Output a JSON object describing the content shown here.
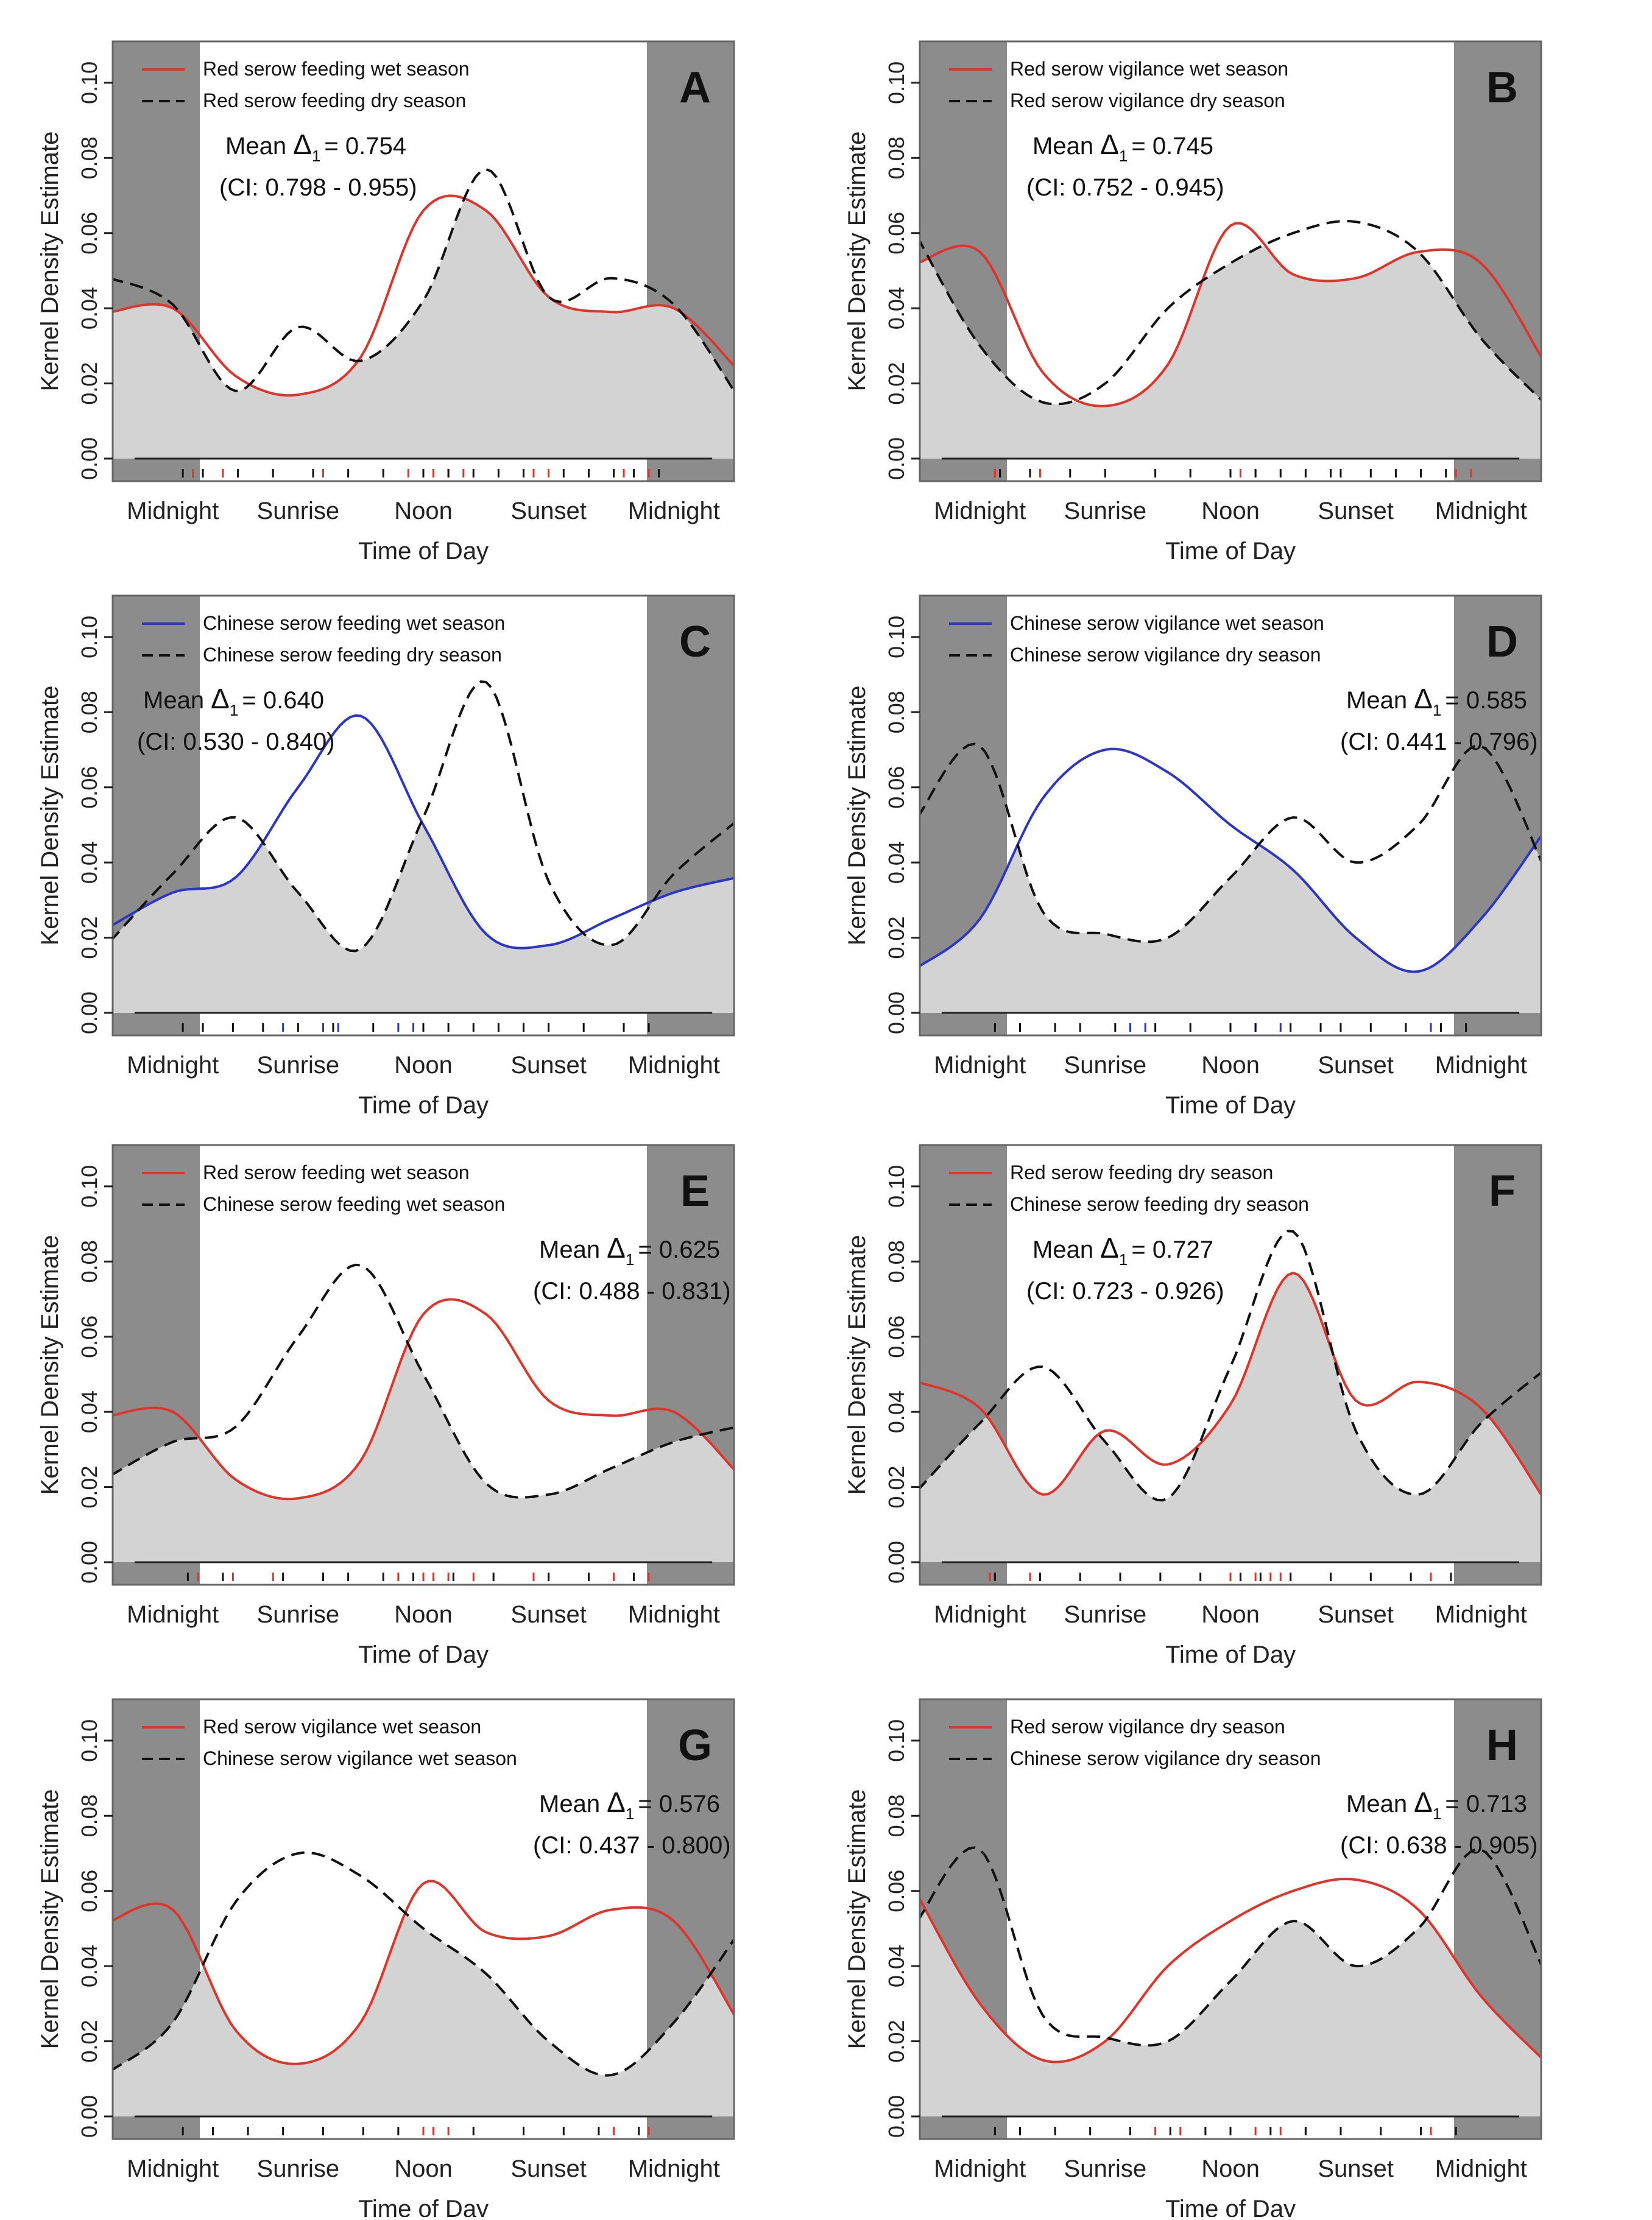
{
  "figure": {
    "ylabel": "Kernel Density Estimate",
    "xlabel": "Time of Day",
    "xticks": [
      "Midnight",
      "Sunrise",
      "Noon",
      "Sunset",
      "Midnight"
    ],
    "yticks": [
      "0.00",
      "0.02",
      "0.04",
      "0.06",
      "0.08",
      "0.10"
    ],
    "colors": {
      "night_band": "#8c8c8c",
      "overlap_fill": "#d3d3d3",
      "red_series": "#e0332a",
      "blue_series": "#2b35c8",
      "black_series": "#111111",
      "frame": "#666666"
    }
  },
  "chart_data": [
    {
      "id": "A",
      "type": "line",
      "title": "A",
      "xlabel": "Time of Day",
      "ylabel": "Kernel Density Estimate",
      "xlim": [
        -0.12,
        1.12
      ],
      "ylim": [
        -0.006,
        0.111
      ],
      "annotation": {
        "mean_prefix": "Mean ",
        "delta": "Δ",
        "subscript": "1",
        "mean_value": "= 0.754",
        "ci": "(CI: 0.798 - 0.955)"
      },
      "series": [
        {
          "name": "Red serow feeding wet season",
          "color": "red",
          "dash": false,
          "x": [
            -0.125,
            0,
            0.125,
            0.25,
            0.375,
            0.5,
            0.625,
            0.75,
            0.875,
            1,
            1.125
          ],
          "y": [
            0.039,
            0.04,
            0.022,
            0.017,
            0.027,
            0.066,
            0.066,
            0.043,
            0.039,
            0.04,
            0.024
          ]
        },
        {
          "name": "Red serow feeding dry season",
          "color": "black",
          "dash": true,
          "x": [
            -0.125,
            0,
            0.125,
            0.25,
            0.375,
            0.5,
            0.625,
            0.75,
            0.875,
            1,
            1.125
          ],
          "y": [
            0.048,
            0.041,
            0.018,
            0.035,
            0.026,
            0.042,
            0.077,
            0.043,
            0.048,
            0.041,
            0.017
          ]
        }
      ],
      "rug": {
        "red": [
          0.04,
          0.1,
          0.3,
          0.47,
          0.5,
          0.52,
          0.55,
          0.58,
          0.72,
          0.75,
          0.9,
          0.95
        ],
        "black": [
          0.02,
          0.06,
          0.13,
          0.2,
          0.28,
          0.35,
          0.42,
          0.5,
          0.55,
          0.6,
          0.65,
          0.7,
          0.78,
          0.83,
          0.88,
          0.92,
          0.97
        ]
      }
    },
    {
      "id": "B",
      "type": "line",
      "title": "B",
      "xlabel": "Time of Day",
      "ylabel": "Kernel Density Estimate",
      "xlim": [
        -0.12,
        1.12
      ],
      "ylim": [
        -0.006,
        0.111
      ],
      "annotation": {
        "mean_prefix": "Mean ",
        "delta": "Δ",
        "subscript": "1",
        "mean_value": "= 0.745",
        "ci": "(CI: 0.752 - 0.945)"
      },
      "series": [
        {
          "name": "Red serow vigilance wet season",
          "color": "red",
          "dash": false,
          "x": [
            -0.125,
            0,
            0.125,
            0.25,
            0.375,
            0.5,
            0.625,
            0.75,
            0.875,
            1,
            1.125
          ],
          "y": [
            0.052,
            0.055,
            0.023,
            0.014,
            0.025,
            0.062,
            0.049,
            0.048,
            0.055,
            0.052,
            0.026
          ]
        },
        {
          "name": "Red serow vigilance dry season",
          "color": "black",
          "dash": true,
          "x": [
            -0.125,
            0,
            0.125,
            0.25,
            0.375,
            0.5,
            0.625,
            0.75,
            0.875,
            1,
            1.125
          ],
          "y": [
            0.059,
            0.03,
            0.015,
            0.02,
            0.04,
            0.052,
            0.06,
            0.063,
            0.055,
            0.032,
            0.015
          ]
        }
      ],
      "rug": {
        "red": [
          0.03,
          0.12,
          0.5,
          0.52,
          0.55,
          0.95,
          0.98
        ],
        "black": [
          0.04,
          0.1,
          0.18,
          0.25,
          0.35,
          0.42,
          0.5,
          0.55,
          0.6,
          0.65,
          0.7,
          0.72,
          0.78,
          0.83,
          0.88,
          0.93
        ]
      }
    },
    {
      "id": "C",
      "type": "line",
      "title": "C",
      "xlabel": "Time of Day",
      "ylabel": "Kernel Density Estimate",
      "xlim": [
        -0.12,
        1.12
      ],
      "ylim": [
        -0.006,
        0.111
      ],
      "annotation": {
        "mean_prefix": "Mean ",
        "delta": "Δ",
        "subscript": "1",
        "mean_value": "= 0.640",
        "ci": "(CI: 0.530 - 0.840)"
      },
      "series": [
        {
          "name": "Chinese serow feeding wet season",
          "color": "blue",
          "dash": false,
          "x": [
            -0.125,
            0,
            0.125,
            0.25,
            0.375,
            0.5,
            0.625,
            0.75,
            0.875,
            1,
            1.125
          ],
          "y": [
            0.023,
            0.032,
            0.036,
            0.06,
            0.079,
            0.05,
            0.021,
            0.018,
            0.025,
            0.032,
            0.036
          ]
        },
        {
          "name": "Chinese serow feeding dry season",
          "color": "black",
          "dash": true,
          "x": [
            -0.125,
            0,
            0.125,
            0.25,
            0.375,
            0.5,
            0.625,
            0.75,
            0.875,
            1,
            1.125
          ],
          "y": [
            0.019,
            0.037,
            0.052,
            0.032,
            0.017,
            0.052,
            0.088,
            0.035,
            0.018,
            0.037,
            0.051
          ]
        }
      ],
      "rug": {
        "blue": [
          0.22,
          0.3,
          0.33,
          0.45,
          0.48
        ],
        "black": [
          0.02,
          0.06,
          0.12,
          0.18,
          0.25,
          0.32,
          0.4,
          0.5,
          0.55,
          0.6,
          0.65,
          0.7,
          0.75,
          0.82,
          0.9,
          0.95
        ]
      }
    },
    {
      "id": "D",
      "type": "line",
      "title": "D",
      "xlabel": "Time of Day",
      "ylabel": "Kernel Density Estimate",
      "xlim": [
        -0.12,
        1.12
      ],
      "ylim": [
        -0.006,
        0.111
      ],
      "annotation": {
        "mean_prefix": "Mean ",
        "delta": "Δ",
        "subscript": "1",
        "mean_value": "= 0.585",
        "ci": "(CI: 0.441 - 0.796)"
      },
      "series": [
        {
          "name": "Chinese serow vigilance wet season",
          "color": "blue",
          "dash": false,
          "x": [
            -0.125,
            0,
            0.125,
            0.25,
            0.375,
            0.5,
            0.625,
            0.75,
            0.875,
            1,
            1.125
          ],
          "y": [
            0.012,
            0.025,
            0.057,
            0.07,
            0.064,
            0.05,
            0.038,
            0.02,
            0.011,
            0.025,
            0.048
          ]
        },
        {
          "name": "Chinese serow vigilance dry season",
          "color": "black",
          "dash": true,
          "x": [
            -0.125,
            0,
            0.125,
            0.25,
            0.375,
            0.5,
            0.625,
            0.75,
            0.875,
            1,
            1.125
          ],
          "y": [
            0.052,
            0.071,
            0.027,
            0.021,
            0.02,
            0.036,
            0.052,
            0.04,
            0.05,
            0.071,
            0.039
          ]
        }
      ],
      "rug": {
        "blue": [
          0.3,
          0.33,
          0.55,
          0.6,
          0.9
        ],
        "black": [
          0.03,
          0.08,
          0.15,
          0.2,
          0.27,
          0.35,
          0.42,
          0.5,
          0.55,
          0.62,
          0.68,
          0.72,
          0.78,
          0.85,
          0.92,
          0.97
        ]
      }
    },
    {
      "id": "E",
      "type": "line",
      "title": "E",
      "xlabel": "Time of Day",
      "ylabel": "Kernel Density Estimate",
      "xlim": [
        -0.12,
        1.12
      ],
      "ylim": [
        -0.006,
        0.111
      ],
      "annotation": {
        "mean_prefix": "Mean ",
        "delta": "Δ",
        "subscript": "1",
        "mean_value": "= 0.625",
        "ci": "(CI: 0.488 - 0.831)"
      },
      "series": [
        {
          "name": "Red serow feeding wet season",
          "color": "red",
          "dash": false,
          "x": [
            -0.125,
            0,
            0.125,
            0.25,
            0.375,
            0.5,
            0.625,
            0.75,
            0.875,
            1,
            1.125
          ],
          "y": [
            0.039,
            0.04,
            0.022,
            0.017,
            0.027,
            0.066,
            0.066,
            0.043,
            0.039,
            0.04,
            0.024
          ]
        },
        {
          "name": "Chinese serow feeding wet season",
          "color": "black",
          "dash": true,
          "x": [
            -0.125,
            0,
            0.125,
            0.25,
            0.375,
            0.5,
            0.625,
            0.75,
            0.875,
            1,
            1.125
          ],
          "y": [
            0.023,
            0.032,
            0.036,
            0.06,
            0.079,
            0.05,
            0.021,
            0.018,
            0.025,
            0.032,
            0.036
          ]
        }
      ],
      "rug": {
        "red": [
          0.05,
          0.12,
          0.2,
          0.45,
          0.5,
          0.52,
          0.55,
          0.6,
          0.72,
          0.88,
          0.95
        ],
        "black": [
          0.03,
          0.1,
          0.22,
          0.3,
          0.35,
          0.42,
          0.48,
          0.56,
          0.64,
          0.75,
          0.83,
          0.92
        ]
      }
    },
    {
      "id": "F",
      "type": "line",
      "title": "F",
      "xlabel": "Time of Day",
      "ylabel": "Kernel Density Estimate",
      "xlim": [
        -0.12,
        1.12
      ],
      "ylim": [
        -0.006,
        0.111
      ],
      "annotation": {
        "mean_prefix": "Mean ",
        "delta": "Δ",
        "subscript": "1",
        "mean_value": "= 0.727",
        "ci": "(CI: 0.723 - 0.926)"
      },
      "series": [
        {
          "name": "Red serow feeding dry season",
          "color": "red",
          "dash": false,
          "x": [
            -0.125,
            0,
            0.125,
            0.25,
            0.375,
            0.5,
            0.625,
            0.75,
            0.875,
            1,
            1.125
          ],
          "y": [
            0.048,
            0.041,
            0.018,
            0.035,
            0.026,
            0.042,
            0.077,
            0.043,
            0.048,
            0.041,
            0.017
          ]
        },
        {
          "name": "Chinese serow feeding dry season",
          "color": "black",
          "dash": true,
          "x": [
            -0.125,
            0,
            0.125,
            0.25,
            0.375,
            0.5,
            0.625,
            0.75,
            0.875,
            1,
            1.125
          ],
          "y": [
            0.019,
            0.037,
            0.052,
            0.032,
            0.017,
            0.052,
            0.088,
            0.035,
            0.018,
            0.037,
            0.051
          ]
        }
      ],
      "rug": {
        "red": [
          0.02,
          0.1,
          0.5,
          0.55,
          0.58,
          0.6,
          0.9
        ],
        "black": [
          0.03,
          0.12,
          0.2,
          0.28,
          0.36,
          0.44,
          0.52,
          0.56,
          0.62,
          0.7,
          0.78,
          0.86,
          0.94
        ]
      }
    },
    {
      "id": "G",
      "type": "line",
      "title": "G",
      "xlabel": "Time of Day",
      "ylabel": "Kernel Density Estimate",
      "xlim": [
        -0.12,
        1.12
      ],
      "ylim": [
        -0.006,
        0.111
      ],
      "annotation": {
        "mean_prefix": "Mean ",
        "delta": "Δ",
        "subscript": "1",
        "mean_value": "= 0.576",
        "ci": "(CI: 0.437 - 0.800)"
      },
      "series": [
        {
          "name": "Red serow vigilance wet season",
          "color": "red",
          "dash": false,
          "x": [
            -0.125,
            0,
            0.125,
            0.25,
            0.375,
            0.5,
            0.625,
            0.75,
            0.875,
            1,
            1.125
          ],
          "y": [
            0.052,
            0.055,
            0.023,
            0.014,
            0.025,
            0.062,
            0.049,
            0.048,
            0.055,
            0.052,
            0.026
          ]
        },
        {
          "name": "Chinese serow vigilance wet season",
          "color": "black",
          "dash": true,
          "x": [
            -0.125,
            0,
            0.125,
            0.25,
            0.375,
            0.5,
            0.625,
            0.75,
            0.875,
            1,
            1.125
          ],
          "y": [
            0.012,
            0.025,
            0.057,
            0.07,
            0.064,
            0.05,
            0.038,
            0.02,
            0.011,
            0.025,
            0.048
          ]
        }
      ],
      "rug": {
        "red": [
          0.5,
          0.52,
          0.55,
          0.88,
          0.95
        ],
        "black": [
          0.02,
          0.08,
          0.15,
          0.22,
          0.3,
          0.38,
          0.45,
          0.6,
          0.7,
          0.78,
          0.85,
          0.93
        ]
      }
    },
    {
      "id": "H",
      "type": "line",
      "title": "H",
      "xlabel": "Time of Day",
      "ylabel": "Kernel Density Estimate",
      "xlim": [
        -0.12,
        1.12
      ],
      "ylim": [
        -0.006,
        0.111
      ],
      "annotation": {
        "mean_prefix": "Mean ",
        "delta": "Δ",
        "subscript": "1",
        "mean_value": "= 0.713",
        "ci": "(CI: 0.638 - 0.905)"
      },
      "series": [
        {
          "name": "Red serow vigilance dry season",
          "color": "red",
          "dash": false,
          "x": [
            -0.125,
            0,
            0.125,
            0.25,
            0.375,
            0.5,
            0.625,
            0.75,
            0.875,
            1,
            1.125
          ],
          "y": [
            0.059,
            0.03,
            0.015,
            0.02,
            0.04,
            0.052,
            0.06,
            0.063,
            0.055,
            0.032,
            0.015
          ]
        },
        {
          "name": "Chinese serow vigilance dry season",
          "color": "black",
          "dash": true,
          "x": [
            -0.125,
            0,
            0.125,
            0.25,
            0.375,
            0.5,
            0.625,
            0.75,
            0.875,
            1,
            1.125
          ],
          "y": [
            0.052,
            0.071,
            0.027,
            0.021,
            0.02,
            0.036,
            0.052,
            0.04,
            0.05,
            0.071,
            0.039
          ]
        }
      ],
      "rug": {
        "red": [
          0.35,
          0.4,
          0.5,
          0.55,
          0.6,
          0.65,
          0.72,
          0.9
        ],
        "black": [
          0.03,
          0.08,
          0.15,
          0.22,
          0.3,
          0.38,
          0.45,
          0.5,
          0.58,
          0.65,
          0.72,
          0.8,
          0.88,
          0.95
        ]
      }
    }
  ]
}
